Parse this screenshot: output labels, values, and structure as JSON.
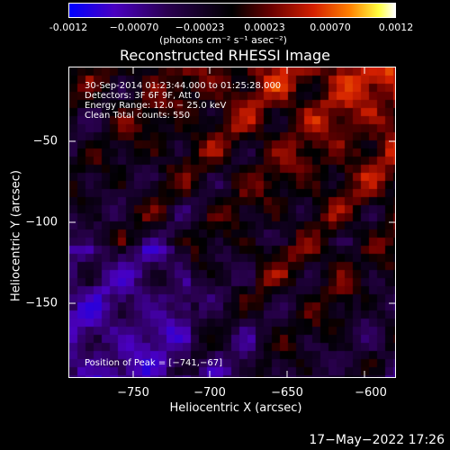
{
  "colorbar": {
    "ticks": [
      "-0.0012",
      "−0.00070",
      "−0.00023",
      "0.00023",
      "0.00070",
      "0.0012"
    ],
    "units": "(photons cm⁻² s⁻¹ asec⁻²)"
  },
  "title": "Reconstructed RHESSI Image",
  "annotations": [
    "30-Sep-2014 01:23:44.000 to 01:25:28.000",
    "Detectors: 3F 6F 9F, Att 0",
    "Energy Range: 12.0 − 25.0 keV",
    "Clean     Total counts: 550"
  ],
  "peak": "Position of Peak = [−741,−67]",
  "axes": {
    "xlabel": "Heliocentric X (arcsec)",
    "ylabel": "Heliocentric Y (arcsec)",
    "xticks": [
      "−750",
      "−700",
      "−650",
      "−600"
    ],
    "yticks": [
      "−50",
      "−100",
      "−150"
    ]
  },
  "footer": "17−May−2022 17:26",
  "colors": {
    "background": "#000000",
    "foreground": "#ffffff"
  }
}
